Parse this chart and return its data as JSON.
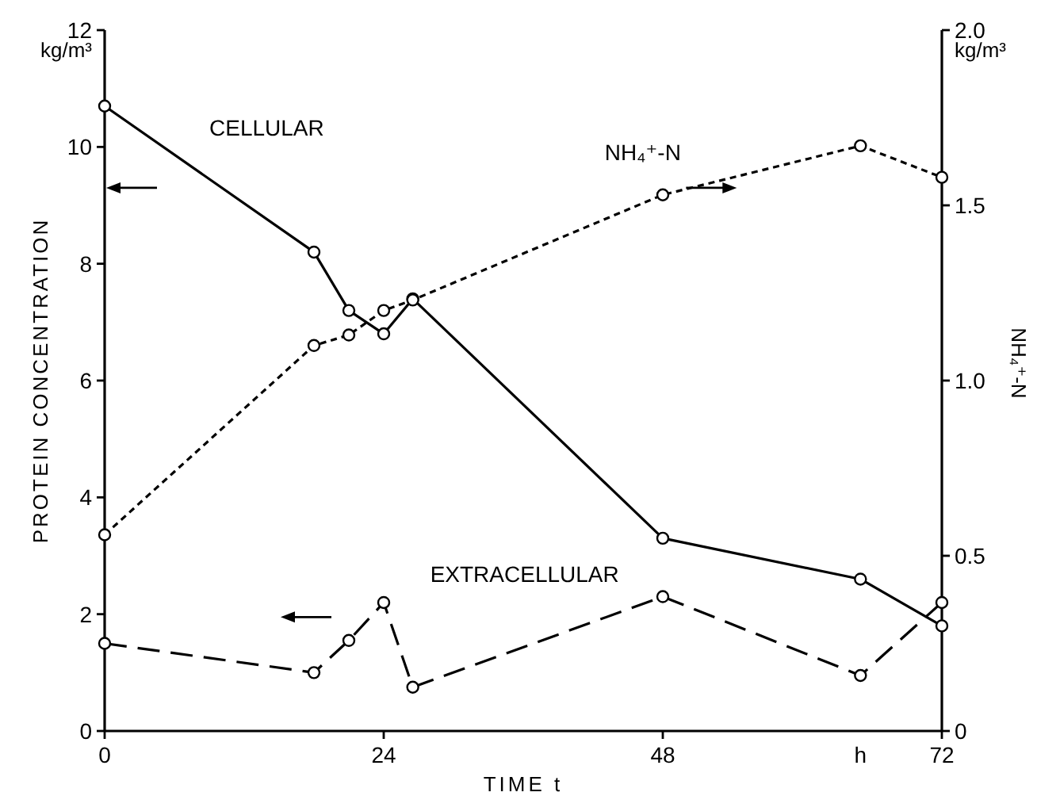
{
  "chart_data": {
    "type": "line",
    "xlabel": "TIME t",
    "ylabel": "PROTEIN CONCENTRATION",
    "y2label": "NH₄⁺-N",
    "annotations": [
      "kg/m³",
      "kg/m³",
      "h"
    ],
    "marker": "circle",
    "grid": false,
    "xlim": [
      0,
      72
    ],
    "xticks": [
      0,
      24,
      48,
      72
    ],
    "ylim": [
      0,
      12
    ],
    "yticks": [
      0,
      2,
      4,
      6,
      8,
      10,
      12
    ],
    "y2lim": [
      0,
      2
    ],
    "y2ticks": [
      0,
      0.5,
      {
        "value": 1,
        "label": "1.0"
      },
      1.5,
      {
        "value": 2,
        "label": "2.0"
      }
    ],
    "series": [
      {
        "name": "CELLULAR",
        "color": "#000000",
        "line_style": "solid",
        "x": [
          0,
          18,
          21,
          24,
          26.5,
          48,
          65,
          72
        ],
        "values": [
          10.7,
          8.2,
          7.2,
          6.8,
          7.4,
          3.3,
          2.6,
          1.8
        ]
      },
      {
        "name": "EXTRACELLULAR",
        "color": "#000000",
        "line_style": "dashed",
        "x": [
          0,
          18,
          21,
          24,
          26.5,
          48,
          65,
          72
        ],
        "values": [
          1.5,
          1.0,
          1.55,
          2.2,
          0.75,
          2.3,
          0.95,
          2.2
        ]
      },
      {
        "name": "NH₄⁺-N",
        "color": "#000000",
        "line_style": "dotted",
        "axis": "y2",
        "x": [
          0,
          18,
          21,
          24,
          26.5,
          48,
          65,
          72
        ],
        "values": [
          0.56,
          1.1,
          1.13,
          1.2,
          1.23,
          1.53,
          1.67,
          1.58
        ]
      }
    ]
  }
}
